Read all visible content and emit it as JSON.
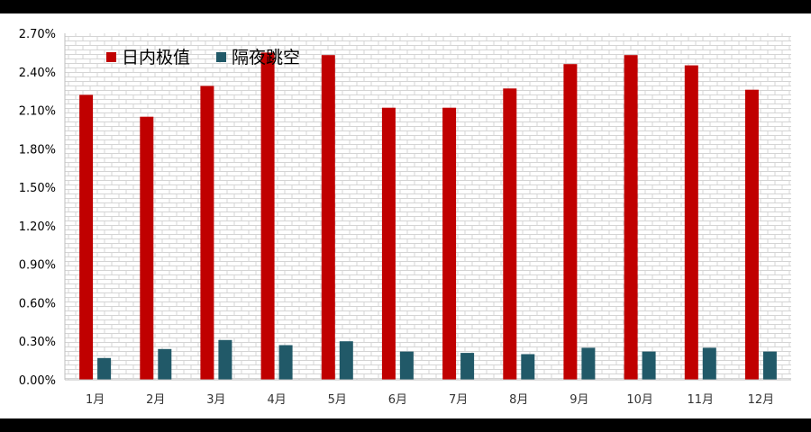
{
  "chart_data": {
    "type": "bar",
    "categories": [
      "1月",
      "2月",
      "3月",
      "4月",
      "5月",
      "6月",
      "7月",
      "8月",
      "9月",
      "10月",
      "11月",
      "12月"
    ],
    "series": [
      {
        "name": "日内极值",
        "color": "#C00000",
        "values": [
          2.22,
          2.05,
          2.29,
          2.55,
          2.53,
          2.12,
          2.12,
          2.27,
          2.46,
          2.53,
          2.45,
          2.26
        ]
      },
      {
        "name": "隔夜跳空",
        "color": "#215968",
        "values": [
          0.17,
          0.24,
          0.31,
          0.27,
          0.3,
          0.22,
          0.21,
          0.2,
          0.25,
          0.22,
          0.25,
          0.22
        ]
      }
    ],
    "ylim": [
      0,
      2.7
    ],
    "yticks": [
      "0.00%",
      "0.30%",
      "0.60%",
      "0.90%",
      "1.20%",
      "1.50%",
      "1.80%",
      "2.10%",
      "2.40%",
      "2.70%"
    ],
    "ytick_values": [
      0,
      0.3,
      0.6,
      0.9,
      1.2,
      1.5,
      1.8,
      2.1,
      2.4,
      2.7
    ],
    "legend_position": "top-left",
    "background_pattern": "brick",
    "title": "",
    "xlabel": "",
    "ylabel": ""
  }
}
